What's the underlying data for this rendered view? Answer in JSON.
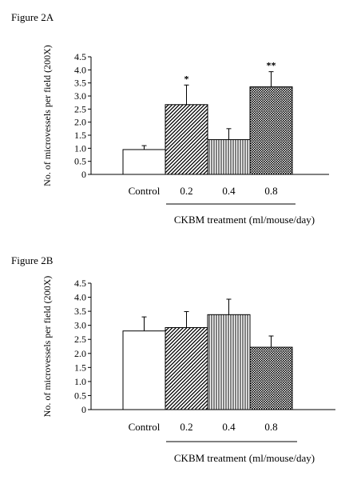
{
  "figures": [
    {
      "label": "Figure 2A"
    },
    {
      "label": "Figure 2B"
    }
  ],
  "chart_data": [
    {
      "type": "bar",
      "title": "Figure 2A",
      "ylabel": "No. of microvessels per field (200X)",
      "xlabel": "CKBM treatment (ml/mouse/day)",
      "categories": [
        "Control",
        "0.2",
        "0.4",
        "0.8"
      ],
      "values": [
        0.95,
        2.67,
        1.33,
        3.35
      ],
      "errors": [
        0.15,
        0.75,
        0.42,
        0.58
      ],
      "significance": [
        "",
        "*",
        "",
        "**"
      ],
      "patterns": [
        "none",
        "diagonal",
        "vertical",
        "dots"
      ],
      "ylim": [
        0,
        4.5
      ],
      "yticks": [
        "0",
        "0.5",
        "1.0",
        "1.5",
        "2.0",
        "2.5",
        "3.0",
        "3.5",
        "4.0",
        "4.5"
      ]
    },
    {
      "type": "bar",
      "title": "Figure 2B",
      "ylabel": "No. of microvessels per field (200X)",
      "xlabel": "CKBM treatment (ml/mouse/day)",
      "categories": [
        "Control",
        "0.2",
        "0.4",
        "0.8"
      ],
      "values": [
        2.8,
        2.92,
        3.38,
        2.22
      ],
      "errors": [
        0.5,
        0.57,
        0.55,
        0.4
      ],
      "significance": [
        "",
        "",
        "",
        ""
      ],
      "patterns": [
        "none",
        "diagonal",
        "vertical",
        "dots"
      ],
      "ylim": [
        0,
        4.5
      ],
      "yticks": [
        "0",
        "0.5",
        "1.0",
        "1.5",
        "2.0",
        "2.5",
        "3.0",
        "3.5",
        "4.0",
        "4.5"
      ]
    }
  ]
}
